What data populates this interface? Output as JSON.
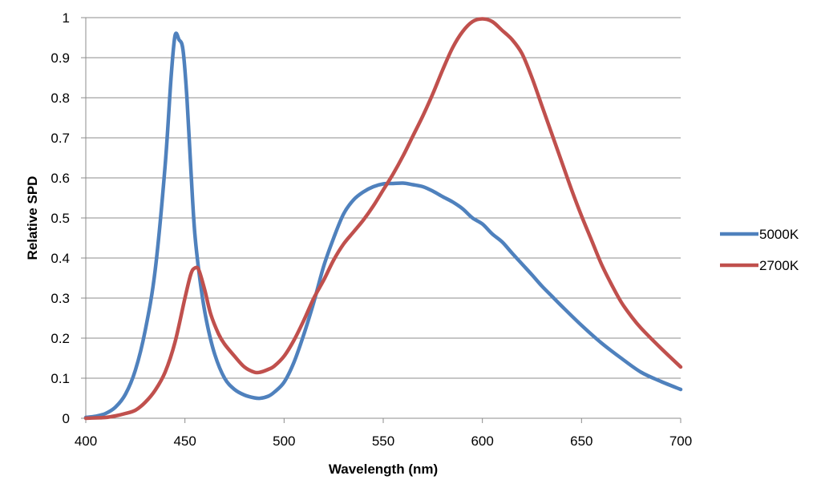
{
  "chart_data": {
    "type": "line",
    "title": "",
    "xlabel": "Wavelength (nm)",
    "ylabel": "Relative SPD",
    "xlim": [
      400,
      700
    ],
    "ylim": [
      0,
      1
    ],
    "x_ticks": [
      "400",
      "450",
      "500",
      "550",
      "600",
      "650",
      "700"
    ],
    "y_ticks": [
      "0",
      "0.1",
      "0.2",
      "0.3",
      "0.4",
      "0.5",
      "0.6",
      "0.7",
      "0.8",
      "0.9",
      "1"
    ],
    "grid": "horizontal",
    "legend_position": "right",
    "series": [
      {
        "name": "5000K",
        "color": "#4f81bd",
        "points": [
          [
            400,
            0.002
          ],
          [
            405,
            0.005
          ],
          [
            410,
            0.012
          ],
          [
            415,
            0.028
          ],
          [
            420,
            0.06
          ],
          [
            425,
            0.12
          ],
          [
            430,
            0.22
          ],
          [
            435,
            0.37
          ],
          [
            440,
            0.63
          ],
          [
            443,
            0.85
          ],
          [
            445,
            0.955
          ],
          [
            447,
            0.945
          ],
          [
            449,
            0.92
          ],
          [
            451,
            0.8
          ],
          [
            453,
            0.62
          ],
          [
            455,
            0.46
          ],
          [
            458,
            0.33
          ],
          [
            461,
            0.24
          ],
          [
            465,
            0.16
          ],
          [
            470,
            0.1
          ],
          [
            475,
            0.072
          ],
          [
            480,
            0.058
          ],
          [
            485,
            0.051
          ],
          [
            488,
            0.05
          ],
          [
            492,
            0.055
          ],
          [
            495,
            0.065
          ],
          [
            500,
            0.09
          ],
          [
            505,
            0.14
          ],
          [
            510,
            0.21
          ],
          [
            515,
            0.29
          ],
          [
            520,
            0.38
          ],
          [
            525,
            0.45
          ],
          [
            530,
            0.51
          ],
          [
            535,
            0.545
          ],
          [
            540,
            0.565
          ],
          [
            545,
            0.578
          ],
          [
            550,
            0.585
          ],
          [
            555,
            0.586
          ],
          [
            560,
            0.587
          ],
          [
            565,
            0.583
          ],
          [
            570,
            0.578
          ],
          [
            575,
            0.567
          ],
          [
            580,
            0.553
          ],
          [
            585,
            0.54
          ],
          [
            590,
            0.523
          ],
          [
            595,
            0.5
          ],
          [
            600,
            0.485
          ],
          [
            605,
            0.46
          ],
          [
            610,
            0.44
          ],
          [
            615,
            0.412
          ],
          [
            620,
            0.385
          ],
          [
            625,
            0.358
          ],
          [
            630,
            0.33
          ],
          [
            635,
            0.305
          ],
          [
            640,
            0.28
          ],
          [
            650,
            0.232
          ],
          [
            660,
            0.188
          ],
          [
            670,
            0.15
          ],
          [
            680,
            0.115
          ],
          [
            690,
            0.092
          ],
          [
            700,
            0.072
          ]
        ]
      },
      {
        "name": "2700K",
        "color": "#c0504d",
        "points": [
          [
            400,
            0.0
          ],
          [
            405,
            0.001
          ],
          [
            410,
            0.002
          ],
          [
            415,
            0.006
          ],
          [
            420,
            0.012
          ],
          [
            425,
            0.02
          ],
          [
            430,
            0.04
          ],
          [
            435,
            0.07
          ],
          [
            440,
            0.115
          ],
          [
            445,
            0.19
          ],
          [
            450,
            0.3
          ],
          [
            453,
            0.36
          ],
          [
            455,
            0.375
          ],
          [
            457,
            0.37
          ],
          [
            460,
            0.32
          ],
          [
            463,
            0.26
          ],
          [
            467,
            0.21
          ],
          [
            470,
            0.185
          ],
          [
            475,
            0.155
          ],
          [
            480,
            0.128
          ],
          [
            485,
            0.115
          ],
          [
            488,
            0.115
          ],
          [
            492,
            0.122
          ],
          [
            495,
            0.13
          ],
          [
            500,
            0.155
          ],
          [
            505,
            0.195
          ],
          [
            510,
            0.245
          ],
          [
            515,
            0.3
          ],
          [
            520,
            0.345
          ],
          [
            525,
            0.395
          ],
          [
            530,
            0.435
          ],
          [
            535,
            0.465
          ],
          [
            540,
            0.495
          ],
          [
            545,
            0.53
          ],
          [
            550,
            0.57
          ],
          [
            555,
            0.61
          ],
          [
            560,
            0.655
          ],
          [
            565,
            0.705
          ],
          [
            570,
            0.755
          ],
          [
            575,
            0.81
          ],
          [
            580,
            0.87
          ],
          [
            585,
            0.925
          ],
          [
            590,
            0.965
          ],
          [
            595,
            0.99
          ],
          [
            600,
            0.997
          ],
          [
            605,
            0.99
          ],
          [
            610,
            0.968
          ],
          [
            615,
            0.945
          ],
          [
            620,
            0.91
          ],
          [
            625,
            0.85
          ],
          [
            630,
            0.78
          ],
          [
            635,
            0.71
          ],
          [
            640,
            0.64
          ],
          [
            645,
            0.57
          ],
          [
            650,
            0.505
          ],
          [
            655,
            0.445
          ],
          [
            660,
            0.385
          ],
          [
            665,
            0.335
          ],
          [
            670,
            0.29
          ],
          [
            675,
            0.255
          ],
          [
            680,
            0.225
          ],
          [
            690,
            0.175
          ],
          [
            700,
            0.128
          ]
        ]
      }
    ]
  }
}
